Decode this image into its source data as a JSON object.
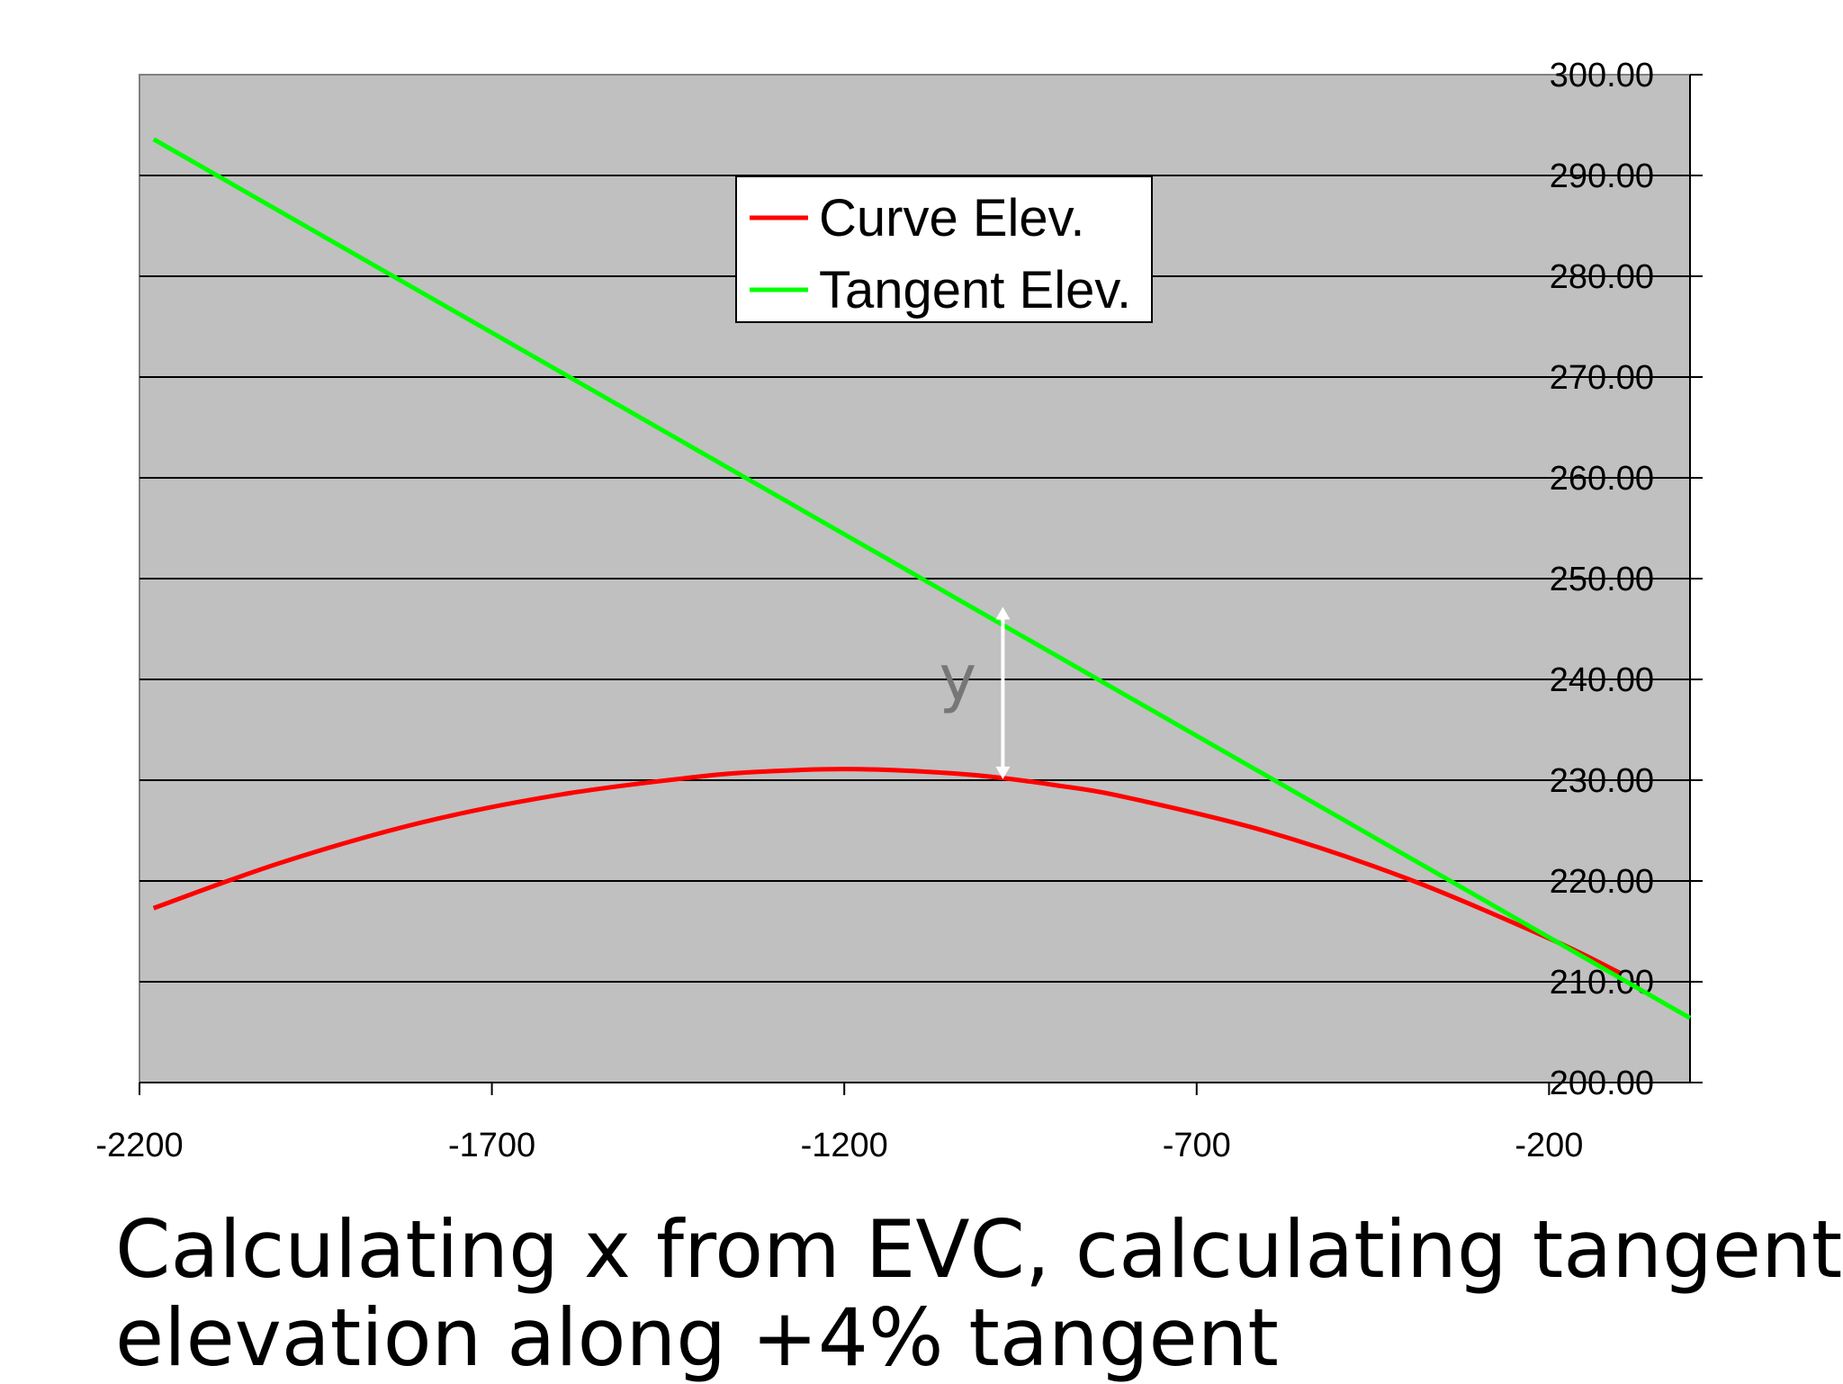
{
  "chart_data": {
    "type": "line",
    "x_ticks": [
      "-2200",
      "-1700",
      "-1200",
      "-700",
      "-200"
    ],
    "y_ticks": [
      "200.00",
      "210.00",
      "220.00",
      "230.00",
      "240.00",
      "250.00",
      "260.00",
      "270.00",
      "280.00",
      "290.00",
      "300.00"
    ],
    "xlim": [
      -2200,
      0
    ],
    "ylim": [
      200,
      300
    ],
    "y_axis_side": "right",
    "grid": "horizontal",
    "legend_position": "top-center",
    "background_color": "#c0c0c0",
    "series": [
      {
        "name": "Curve Elev.",
        "color": "#ff0000",
        "x": [
          -2180,
          -2000,
          -1800,
          -1600,
          -1400,
          -1300,
          -1200,
          -1100,
          -1000,
          -900,
          -800,
          -600,
          -400,
          -200,
          -100
        ],
        "y": [
          217.3,
          221.8,
          225.8,
          228.6,
          230.4,
          230.9,
          231.1,
          230.9,
          230.4,
          229.5,
          228.3,
          224.9,
          220.2,
          214.3,
          210.9
        ]
      },
      {
        "name": "Tangent Elev.",
        "color": "#00ff00",
        "x": [
          -2180,
          0
        ],
        "y": [
          293.6,
          206.4
        ]
      }
    ],
    "annotations": [
      {
        "text": "y",
        "type": "double-arrow",
        "x": -975,
        "y_from": 230.1,
        "y_to": 247.2,
        "color": "#ffffff"
      }
    ]
  },
  "caption": {
    "line1": "Calculating x from EVC, calculating tangent",
    "line2": "elevation along +4% tangent"
  }
}
